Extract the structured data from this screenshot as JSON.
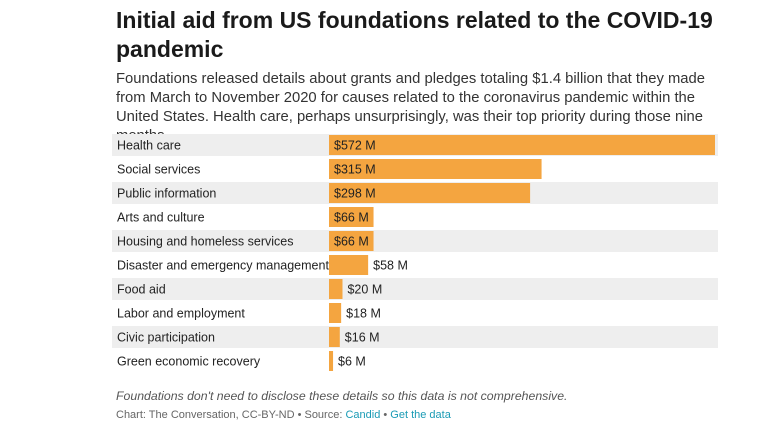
{
  "header": {
    "title": "Initial aid from US foundations related to the COVID-19 pandemic",
    "subtitle": "Foundations released details about grants and pledges totaling $1.4 billion that they made from March to November 2020 for causes related to the coronavirus pandemic within the United States. Health care, perhaps unsurprisingly, was their top priority during those nine months."
  },
  "chart_data": {
    "type": "bar",
    "orientation": "horizontal",
    "categories": [
      "Health care",
      "Social services",
      "Public information",
      "Arts and culture",
      "Housing and homeless services",
      "Disaster and emergency management",
      "Food aid",
      "Labor and employment",
      "Civic participation",
      "Green economic recovery"
    ],
    "values": [
      572,
      315,
      298,
      66,
      66,
      58,
      20,
      18,
      16,
      6
    ],
    "value_labels": [
      "$572 M",
      "$315 M",
      "$298 M",
      "$66 M",
      "$66 M",
      "$58 M",
      "$20 M",
      "$18 M",
      "$16 M",
      "$6 M"
    ],
    "unit": "$ M",
    "bar_color": "#f4a540",
    "row_band_color": "#eeeeee",
    "grid": false,
    "legend": "none"
  },
  "footer": {
    "note": "Foundations don't need to disclose these details so this data is not comprehensive.",
    "credit_prefix": "Chart: The Conversation, CC-BY-ND • Source: ",
    "source_link": "Candid",
    "separator": " • ",
    "data_link": "Get the data",
    "link_color": "#1a9bb5"
  }
}
